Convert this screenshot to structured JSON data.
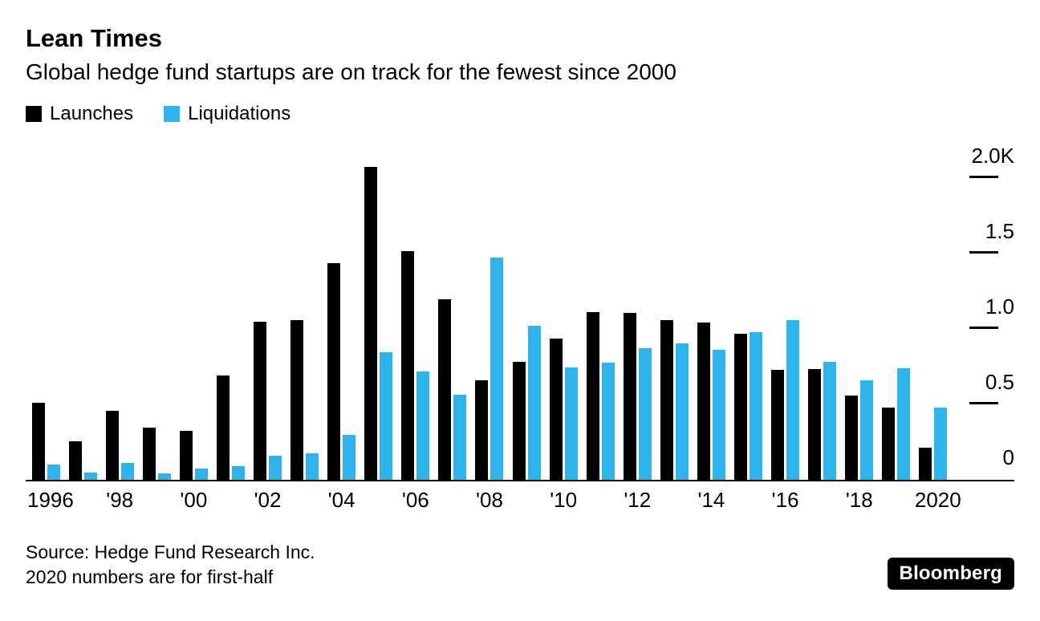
{
  "header": {
    "title": "Lean Times",
    "subtitle": "Global hedge fund startups are on track for the fewest since 2000"
  },
  "legend": [
    {
      "label": "Launches",
      "color": "#000000"
    },
    {
      "label": "Liquidations",
      "color": "#30B2EA"
    }
  ],
  "chart_data": {
    "type": "bar",
    "title": "Lean Times",
    "subtitle": "Global hedge fund startups are on track for the fewest since 2000",
    "categories": [
      "1996",
      "1997",
      "1998",
      "1999",
      "2000",
      "2001",
      "2002",
      "2003",
      "2004",
      "2005",
      "2006",
      "2007",
      "2008",
      "2009",
      "2010",
      "2011",
      "2012",
      "2013",
      "2014",
      "2015",
      "2016",
      "2017",
      "2018",
      "2019",
      "2020"
    ],
    "x_tick_labels": [
      "1996",
      "",
      "'98",
      "",
      "'00",
      "",
      "'02",
      "",
      "'04",
      "",
      "'06",
      "",
      "'08",
      "",
      "'10",
      "",
      "'12",
      "",
      "'14",
      "",
      "'16",
      "",
      "'18",
      "",
      "2020"
    ],
    "series": [
      {
        "name": "Launches",
        "color": "#000000",
        "values": [
          510,
          255,
          460,
          345,
          325,
          690,
          1050,
          1060,
          1435,
          2073,
          1518,
          1197,
          659,
          784,
          935,
          1113,
          1108,
          1060,
          1040,
          968,
          729,
          735,
          561,
          480,
          213
        ]
      },
      {
        "name": "Liquidations",
        "color": "#30B2EA",
        "values": [
          100,
          50,
          110,
          45,
          75,
          90,
          160,
          175,
          296,
          848,
          717,
          563,
          1471,
          1023,
          743,
          775,
          873,
          904,
          864,
          979,
          1057,
          784,
          659,
          738,
          480
        ]
      }
    ],
    "y_ticks": [
      {
        "label": "0",
        "value": 0
      },
      {
        "label": "0.5",
        "value": 500
      },
      {
        "label": "1.0",
        "value": 1000
      },
      {
        "label": "1.5",
        "value": 1500
      },
      {
        "label": "2.0K",
        "value": 2000
      }
    ],
    "ylim": [
      0,
      2100
    ],
    "y_axis_position": "right",
    "grid": false,
    "legend_position": "top-left"
  },
  "footer": {
    "source_line1": "Source: Hedge Fund Research Inc.",
    "source_line2": "2020 numbers are for first-half",
    "brand": "Bloomberg"
  }
}
